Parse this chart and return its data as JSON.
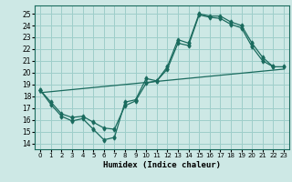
{
  "bg_color": "#cde8e5",
  "grid_color": "#9ececa",
  "line_color": "#1a6b5e",
  "xlabel": "Humidex (Indice chaleur)",
  "xlim": [
    -0.5,
    23.5
  ],
  "ylim": [
    13.5,
    25.7
  ],
  "yticks": [
    14,
    15,
    16,
    17,
    18,
    19,
    20,
    21,
    22,
    23,
    24,
    25
  ],
  "xticks": [
    0,
    1,
    2,
    3,
    4,
    5,
    6,
    7,
    8,
    9,
    10,
    11,
    12,
    13,
    14,
    15,
    16,
    17,
    18,
    19,
    20,
    21,
    22,
    23
  ],
  "curve1_x": [
    0,
    1,
    2,
    3,
    4,
    5,
    6,
    7,
    8,
    9,
    10,
    11,
    12,
    13,
    14,
    15,
    16,
    17,
    18,
    19,
    20,
    21,
    22
  ],
  "curve1_y": [
    18.5,
    17.3,
    16.3,
    15.9,
    16.1,
    15.2,
    14.3,
    14.5,
    17.5,
    17.7,
    19.5,
    19.3,
    20.5,
    22.8,
    22.5,
    25.0,
    24.8,
    24.8,
    24.3,
    24.0,
    22.5,
    21.3,
    20.5
  ],
  "curve2_x": [
    0,
    1,
    2,
    3,
    4,
    5,
    6,
    7,
    8,
    9,
    10,
    11,
    12,
    13,
    14,
    15,
    16,
    17,
    18,
    19,
    20,
    21,
    22,
    23
  ],
  "curve2_y": [
    18.5,
    17.5,
    16.5,
    16.2,
    16.3,
    15.8,
    15.3,
    15.2,
    17.2,
    17.6,
    19.1,
    19.3,
    20.3,
    22.5,
    22.3,
    24.9,
    24.7,
    24.6,
    24.1,
    23.8,
    22.2,
    21.0,
    20.5,
    20.5
  ],
  "curve3_x": [
    0,
    23
  ],
  "curve3_y": [
    18.5,
    20.5
  ],
  "regline_x": [
    0,
    23
  ],
  "regline_y": [
    18.3,
    20.3
  ]
}
